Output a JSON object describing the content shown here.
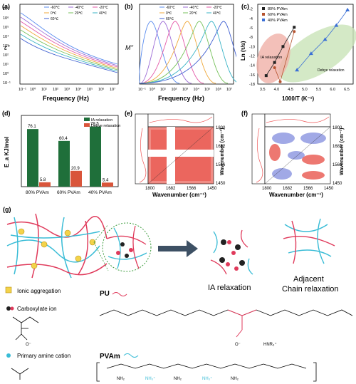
{
  "panels": {
    "a": {
      "tag": "(a)",
      "ylabel": "ε''",
      "xlabel": "Frequency (Hz)",
      "yticks": [
        "10⁷",
        "10⁶",
        "10⁵",
        "10⁴",
        "10³",
        "10²",
        "10¹",
        "10⁰",
        "10⁻¹"
      ],
      "xticks": [
        "10⁻¹",
        "10⁰",
        "10¹",
        "10²",
        "10³",
        "10⁴",
        "10⁵",
        "10⁶",
        "10⁷"
      ]
    },
    "b": {
      "tag": "(b)",
      "ylabel": "M''",
      "xlabel": "Frequency (Hz)",
      "xticks": [
        "10⁻¹",
        "10⁰",
        "10¹",
        "10²",
        "10³",
        "10⁴",
        "10⁵",
        "10⁶",
        "10⁷"
      ]
    },
    "c": {
      "tag": "(c)",
      "ylabel": "Ln (τ/s)",
      "xlabel": "1000/T (K⁻¹)",
      "yticks": [
        "-2",
        "-4",
        "-6",
        "-8",
        "-10",
        "-12",
        "-14",
        "-16",
        "-18"
      ],
      "xticks": [
        "3.5",
        "4.0",
        "4.5",
        "5.0",
        "5.5",
        "6.0",
        "6.5"
      ],
      "label_ia": "IA relaxation",
      "label_debye": "Debye relaxation"
    },
    "d": {
      "tag": "(d)",
      "ylabel": "E_a KJ/mol"
    },
    "e": {
      "tag": "(e)",
      "xlabel": "Wavenumber (cm⁻¹)",
      "ylabel": "Wavenumber (cm⁻¹)",
      "ticks": [
        "1800",
        "1682",
        "1566",
        "1450"
      ],
      "top_ticks": [
        "1800",
        "1682",
        "1566",
        "1450"
      ]
    },
    "f": {
      "tag": "(f)",
      "xlabel": "Wavenumber (cm⁻¹)",
      "ylabel": "Wavenumber (cm⁻¹)",
      "ticks": [
        "1800",
        "1682",
        "1566",
        "1450"
      ],
      "top_ticks": [
        "1800",
        "1682",
        "1566",
        "1450"
      ]
    },
    "g": {
      "tag": "(g)",
      "ia_label": "IA relaxation",
      "adjacent_label_1": "Adjacent",
      "adjacent_label_2": "Chain relaxation",
      "legend": {
        "ionic": "Ionic aggregation",
        "carboxylate": "Carboxylate ion",
        "amine": "Primary amine cation"
      },
      "pu_label": "PU",
      "pvam_label": "PVAm",
      "hnr3": "HNR₃⁺",
      "nh2": "NH₂",
      "nh3": "NH₃⁺",
      "o_minus": "O⁻"
    }
  },
  "series_temps_a": [
    "-60℃",
    "-40℃",
    "-20℃",
    "0℃",
    "20℃",
    "40℃",
    "60℃"
  ],
  "series_temps_b": [
    "-60℃",
    "-40℃",
    "-20℃",
    "0℃",
    "20℃",
    "40℃",
    "60℃"
  ],
  "colors": {
    "s1": "#5b8def",
    "s2": "#9c6bd6",
    "s3": "#e45aa9",
    "s4": "#f0a93b",
    "s5": "#77c25c",
    "s6": "#39b3c6",
    "s7": "#3f5fd1",
    "green": "#1f6f3a",
    "red": "#d9553a",
    "pvam": "#39bcd6",
    "pu": "#e03a5b"
  },
  "chart_data": [
    {
      "type": "bar",
      "title": "",
      "ylabel": "E_a KJ/mol",
      "ylim": [
        0,
        80
      ],
      "categories": [
        "80% PVAm",
        "60% PVAm",
        "40% PVAm"
      ],
      "series": [
        {
          "name": "IA relaxation",
          "values": [
            76.1,
            60.4,
            79.5
          ]
        },
        {
          "name": "Debye relaxation",
          "values": [
            5.8,
            20.9,
            5.4
          ]
        }
      ],
      "legend": "top-right"
    },
    {
      "type": "scatter",
      "title": "",
      "xlabel": "1000/T (K⁻¹)",
      "ylabel": "Ln (τ/s)",
      "xlim": [
        3.3,
        6.7
      ],
      "ylim": [
        -18,
        -1
      ],
      "series": [
        {
          "name": "80% PVAm",
          "x": [
            3.6,
            3.9,
            4.2,
            4.6
          ],
          "y": [
            -16.2,
            -13.4,
            -10.0,
            -5.9
          ]
        },
        {
          "name": "60% PVAm",
          "x": [
            3.9,
            4.1,
            4.6
          ],
          "y": [
            -14.5,
            -17.5,
            -6.8
          ]
        },
        {
          "name": "40% PVAm",
          "x": [
            4.7,
            5.2,
            5.7,
            6.1,
            6.5
          ],
          "y": [
            -15.0,
            -11.5,
            -8.5,
            -5.5,
            -2.2
          ]
        }
      ]
    }
  ]
}
